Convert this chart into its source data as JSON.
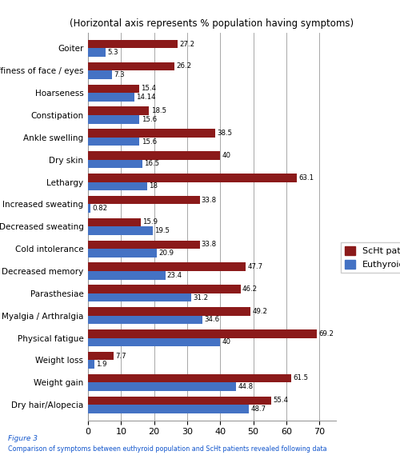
{
  "title": "(Horizontal axis represents % population having symptoms)",
  "categories": [
    "Dry hair/Alopecia",
    "Weight gain",
    "Weight loss",
    "Physical fatigue",
    "Myalgia / Arthralgia",
    "Parasthesiae",
    "Decreased memory",
    "Cold intolerance",
    "Decreased sweating",
    "Increased sweating",
    "Lethargy",
    "Dry skin",
    "Ankle swelling",
    "Constipation",
    "Hoarseness",
    "Puffiness of face / eyes",
    "Goiter"
  ],
  "scht_values": [
    55.4,
    61.5,
    7.7,
    69.2,
    49.2,
    46.2,
    47.7,
    33.8,
    15.9,
    33.8,
    63.1,
    40.0,
    38.5,
    18.5,
    15.4,
    26.2,
    27.2
  ],
  "euthyroid_values": [
    48.7,
    44.8,
    1.9,
    40.0,
    34.6,
    31.2,
    23.4,
    20.9,
    19.5,
    0.82,
    18.0,
    16.5,
    15.6,
    15.6,
    14.14,
    7.3,
    5.3
  ],
  "scht_color": "#8B1A1A",
  "euthyroid_color": "#4472C4",
  "xlim": [
    0,
    75
  ],
  "xticks": [
    0,
    10,
    20,
    30,
    40,
    50,
    60,
    70
  ],
  "figure_caption_line1": "Figure 3",
  "figure_caption_line2": "Comparison of symptoms between euthyroid population and ScHt patients revealed following data",
  "legend_scht": "ScHt patients",
  "legend_euthyroid": "Euthyroid",
  "background_color": "#FFFFFF",
  "bar_height": 0.38
}
